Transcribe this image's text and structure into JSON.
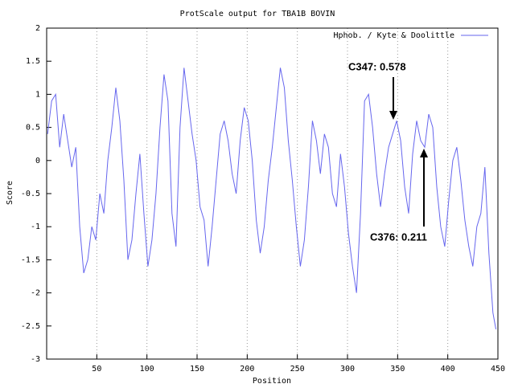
{
  "chart_data": {
    "type": "line",
    "title": "ProtScale output for TBA1B BOVIN",
    "x_label": "Position",
    "y_label": "Score",
    "x": [
      1,
      5,
      9,
      13,
      17,
      21,
      25,
      29,
      33,
      37,
      41,
      45,
      49,
      53,
      57,
      61,
      65,
      69,
      73,
      77,
      81,
      85,
      89,
      93,
      97,
      101,
      105,
      109,
      113,
      117,
      121,
      125,
      129,
      133,
      137,
      141,
      145,
      149,
      153,
      157,
      161,
      165,
      169,
      173,
      177,
      181,
      185,
      189,
      193,
      197,
      201,
      205,
      209,
      213,
      217,
      221,
      225,
      229,
      233,
      237,
      241,
      245,
      249,
      253,
      257,
      261,
      265,
      269,
      273,
      277,
      281,
      285,
      289,
      293,
      297,
      301,
      305,
      309,
      313,
      317,
      321,
      325,
      329,
      333,
      337,
      341,
      345,
      349,
      353,
      357,
      361,
      365,
      369,
      373,
      377,
      381,
      385,
      389,
      393,
      397,
      401,
      405,
      409,
      413,
      417,
      421,
      425,
      429,
      433,
      437,
      441,
      445,
      448
    ],
    "series": [
      {
        "name": "Hphob. / Kyte & Doolittle",
        "color": "#6666ee",
        "values": [
          0.4,
          0.9,
          1.0,
          0.2,
          0.7,
          0.3,
          -0.1,
          0.2,
          -1.0,
          -1.7,
          -1.5,
          -1.0,
          -1.2,
          -0.5,
          -0.8,
          0.0,
          0.5,
          1.1,
          0.6,
          -0.3,
          -1.5,
          -1.2,
          -0.5,
          0.1,
          -0.8,
          -1.6,
          -1.2,
          -0.5,
          0.5,
          1.3,
          0.9,
          -0.8,
          -1.3,
          0.5,
          1.4,
          0.9,
          0.4,
          0.0,
          -0.7,
          -0.9,
          -1.6,
          -1.0,
          -0.3,
          0.4,
          0.6,
          0.3,
          -0.2,
          -0.5,
          0.3,
          0.8,
          0.6,
          0.0,
          -0.9,
          -1.4,
          -1.0,
          -0.3,
          0.2,
          0.8,
          1.4,
          1.1,
          0.3,
          -0.3,
          -1.0,
          -1.6,
          -1.2,
          -0.4,
          0.6,
          0.3,
          -0.2,
          0.4,
          0.2,
          -0.5,
          -0.7,
          0.1,
          -0.4,
          -1.1,
          -1.6,
          -2.0,
          -0.8,
          0.9,
          1.0,
          0.5,
          -0.2,
          -0.7,
          -0.2,
          0.2,
          0.4,
          0.6,
          0.3,
          -0.4,
          -0.8,
          0.1,
          0.6,
          0.3,
          0.2,
          0.7,
          0.5,
          -0.4,
          -1.0,
          -1.3,
          -0.6,
          0.0,
          0.2,
          -0.3,
          -0.9,
          -1.3,
          -1.6,
          -1.0,
          -0.8,
          -0.1,
          -1.4,
          -2.3,
          -2.55
        ]
      }
    ],
    "xlim": [
      0,
      450
    ],
    "ylim": [
      -3,
      2
    ],
    "xticks": [
      50,
      100,
      150,
      200,
      250,
      300,
      350,
      400,
      450
    ],
    "yticks": [
      -3,
      -2.5,
      -2,
      -1.5,
      -1,
      -0.5,
      0,
      0.5,
      1,
      1.5,
      2
    ],
    "grid": "x",
    "annotations": [
      {
        "text": "C347: 0.578"
      },
      {
        "text": "C376: 0.211"
      }
    ]
  }
}
